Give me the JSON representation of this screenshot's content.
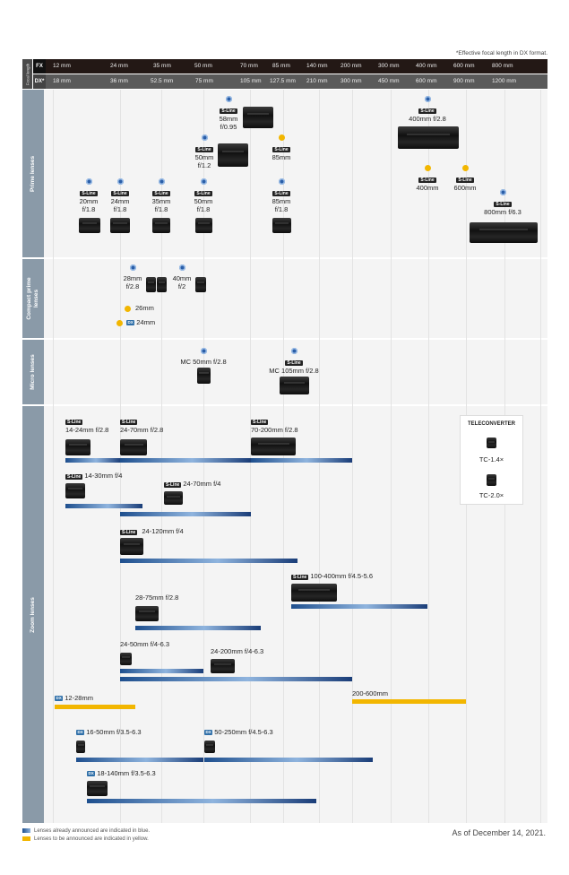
{
  "footnote": "*Effective focal length in DX format.",
  "focal_length": {
    "side_label": "Focal length",
    "fx_tag": "FX",
    "dx_tag": "DX*",
    "fx": [
      "12 mm",
      "24 mm",
      "35 mm",
      "50 mm",
      "70 mm",
      "85 mm",
      "140 mm",
      "200 mm",
      "300 mm",
      "400 mm",
      "600 mm",
      "800 mm"
    ],
    "dx": [
      "18 mm",
      "36 mm",
      "52.5 mm",
      "75 mm",
      "105 mm",
      "127.5 mm",
      "210 mm",
      "300 mm",
      "450 mm",
      "600 mm",
      "900 mm",
      "1200 mm"
    ]
  },
  "sections": {
    "prime": "Prime lenses",
    "compact": "Compact prime lenses",
    "micro": "Micro lenses",
    "zoom": "Zoom lenses"
  },
  "sline_label": "S-Line",
  "dx_label": "DX",
  "prime": {
    "z58": "58mm f/0.95",
    "z50_12": "50mm f/1.2",
    "z85_y": "85mm",
    "z400_28": "400mm f/2.8",
    "z400_y": "400mm",
    "z600_y": "600mm",
    "z20": "20mm f/1.8",
    "z24": "24mm f/1.8",
    "z35": "35mm f/1.8",
    "z50": "50mm f/1.8",
    "z85": "85mm f/1.8",
    "z800": "800mm f/6.3"
  },
  "compact": {
    "z28": "28mm f/2.8",
    "z40": "40mm f/2",
    "z26_y": "26mm",
    "z24_y": "24mm"
  },
  "micro": {
    "mc50": "MC 50mm f/2.8",
    "mc105": "MC 105mm f/2.8"
  },
  "zoom": {
    "z14_24": "14-24mm f/2.8",
    "z24_70_28": "24-70mm f/2.8",
    "z70_200": "70-200mm f/2.8",
    "z14_30": "14-30mm f/4",
    "z24_70_4": "24-70mm f/4",
    "z24_120": "24-120mm f/4",
    "z100_400": "100-400mm f/4.5-5.6",
    "z28_75": "28-75mm f/2.8",
    "z24_50": "24-50mm f/4-6.3",
    "z24_200": "24-200mm f/4-6.3",
    "z12_28": "12-28mm",
    "z200_600": "200-600mm",
    "z16_50": "16-50mm f/3.5-6.3",
    "z50_250": "50-250mm f/4.5-6.3",
    "z18_140": "18-140mm f/3.5-6.3"
  },
  "teleconverter": {
    "title": "TELECONVERTER",
    "tc14": "TC-1.4×",
    "tc20": "TC-2.0×"
  },
  "legend": {
    "blue": "Lenses already announced are indicated in blue.",
    "yellow": "Lenses to be announced are indicated in yellow."
  },
  "as_of": "As of December 14, 2021.",
  "colors": {
    "blue": "#1e4f8e",
    "yellow": "#f2b600",
    "section": "#8a9aa8"
  }
}
